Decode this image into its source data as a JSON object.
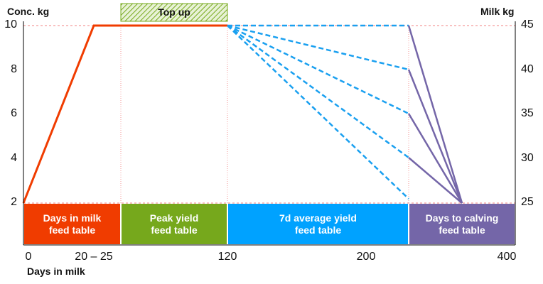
{
  "axes": {
    "left": {
      "title": "Conc. kg",
      "ticks": [
        10,
        8,
        6,
        4,
        2
      ]
    },
    "right": {
      "title": "Milk kg",
      "ticks": [
        45,
        40,
        35,
        30,
        25
      ]
    },
    "x": {
      "title": "Days in milk",
      "ticks": [
        "0",
        "20 – 25",
        "120",
        "200",
        "400"
      ]
    }
  },
  "top_up": "Top up",
  "boxes": [
    "Days in milk\nfeed table",
    "Peak yield\nfeed table",
    "7d average yield\nfeed table",
    "Days to calving\nfeed table"
  ]
}
